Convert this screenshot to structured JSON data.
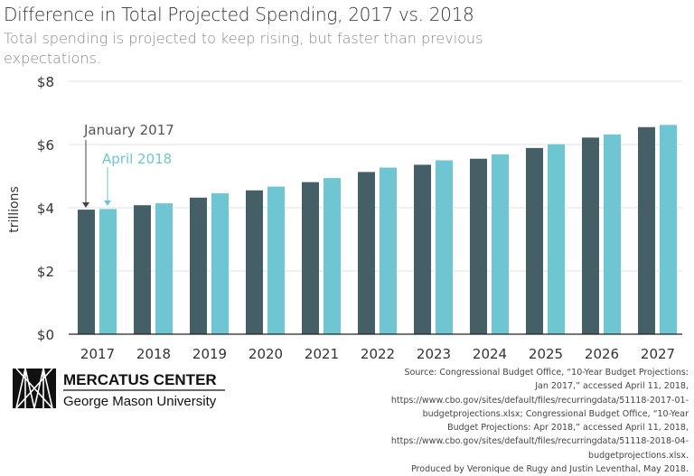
{
  "chart_data": {
    "type": "bar",
    "title": "Difference in Total Projected Spending, 2017 vs. 2018",
    "subtitle": "Total spending is projected to keep rising, but faster than previous expectations.",
    "ylabel": "trillions",
    "ylim": [
      0,
      8
    ],
    "yticks": [
      "$0",
      "$2",
      "$4",
      "$6",
      "$8"
    ],
    "grid": true,
    "categories": [
      "2017",
      "2018",
      "2019",
      "2020",
      "2021",
      "2022",
      "2023",
      "2024",
      "2025",
      "2026",
      "2027"
    ],
    "series": [
      {
        "name": "January 2017",
        "color": "#455f66",
        "values": [
          3.94,
          4.08,
          4.32,
          4.55,
          4.81,
          5.13,
          5.36,
          5.55,
          5.89,
          6.22,
          6.55
        ]
      },
      {
        "name": "April 2018",
        "color": "#6ec6d2",
        "values": [
          3.96,
          4.14,
          4.46,
          4.67,
          4.94,
          5.27,
          5.5,
          5.69,
          6.01,
          6.32,
          6.62
        ]
      }
    ]
  },
  "logo": {
    "line1": "MERCATUS CENTER",
    "line2": "George Mason University"
  },
  "source": "Source: Congressional Budget Office, “10-Year Budget Projections: Jan 2017,” accessed April 11, 2018, https://www.cbo.gov/sites/default/files/recurringdata/51118-2017-01-budgetprojections.xlsx; Congressional Budget Office, “10-Year Budget Projections: Apr 2018,” accessed April 11, 2018, https://www.cbo.gov/sites/default/files/recurringdata/51118-2018-04-budgetprojections.xlsx.",
  "credit": "Produced by Veronique de Rugy and Justin Leventhal, May 2018."
}
